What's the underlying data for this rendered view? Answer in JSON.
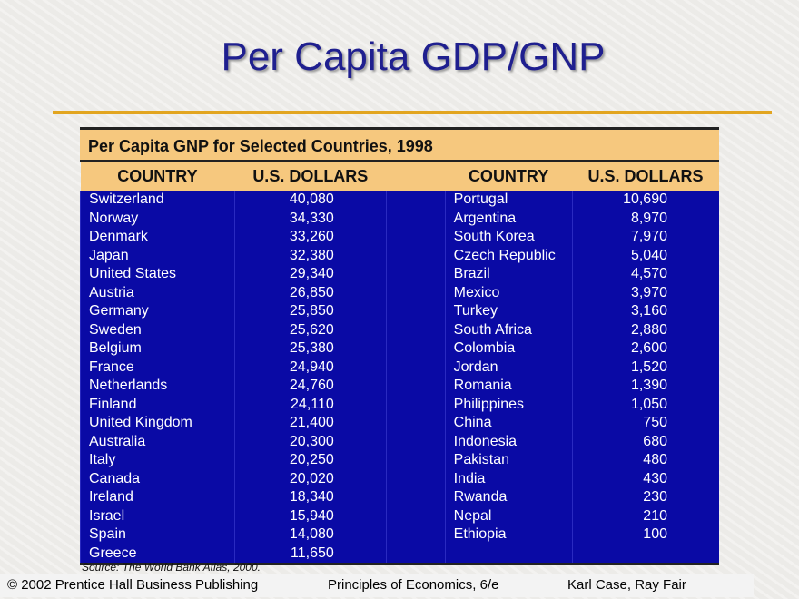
{
  "title": "Per Capita GDP/GNP",
  "table": {
    "caption": "Per Capita GNP for Selected Countries, 1998",
    "headers": [
      "COUNTRY",
      "U.S. DOLLARS",
      "COUNTRY",
      "U.S. DOLLARS"
    ],
    "rows": [
      [
        "Switzerland",
        "40,080",
        "Portugal",
        "10,690"
      ],
      [
        "Norway",
        "34,330",
        "Argentina",
        "8,970"
      ],
      [
        "Denmark",
        "33,260",
        "South Korea",
        "7,970"
      ],
      [
        "Japan",
        "32,380",
        "Czech Republic",
        "5,040"
      ],
      [
        "United States",
        "29,340",
        "Brazil",
        "4,570"
      ],
      [
        "Austria",
        "26,850",
        "Mexico",
        "3,970"
      ],
      [
        "Germany",
        "25,850",
        "Turkey",
        "3,160"
      ],
      [
        "Sweden",
        "25,620",
        "South Africa",
        "2,880"
      ],
      [
        "Belgium",
        "25,380",
        "Colombia",
        "2,600"
      ],
      [
        "France",
        "24,940",
        "Jordan",
        "1,520"
      ],
      [
        "Netherlands",
        "24,760",
        "Romania",
        "1,390"
      ],
      [
        "Finland",
        "24,110",
        "Philippines",
        "1,050"
      ],
      [
        "United Kingdom",
        "21,400",
        "China",
        "750"
      ],
      [
        "Australia",
        "20,300",
        "Indonesia",
        "680"
      ],
      [
        "Italy",
        "20,250",
        "Pakistan",
        "480"
      ],
      [
        "Canada",
        "20,020",
        "India",
        "430"
      ],
      [
        "Ireland",
        "18,340",
        "Rwanda",
        "230"
      ],
      [
        "Israel",
        "15,940",
        "Nepal",
        "210"
      ],
      [
        "Spain",
        "14,080",
        "Ethiopia",
        "100"
      ],
      [
        "Greece",
        "11,650",
        "",
        ""
      ]
    ]
  },
  "source": "Source:  The World Bank Atlas, 2000.",
  "footer": {
    "copyright": "© 2002 Prentice Hall Business Publishing",
    "book": "Principles of Economics, 6/e",
    "authors": "Karl Case, Ray Fair"
  },
  "colors": {
    "title": "#1f1f8f",
    "accent": "#e2a520",
    "header_bg": "#f6c87e",
    "row_bg": "#0a0aa5"
  }
}
